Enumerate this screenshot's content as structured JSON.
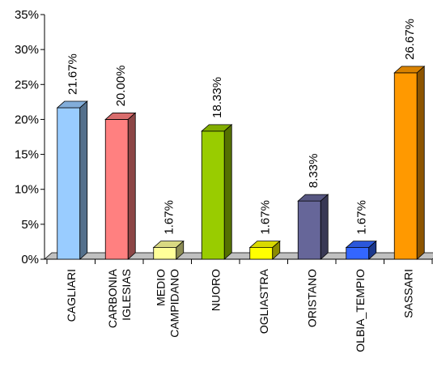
{
  "chart_data": {
    "type": "bar",
    "title": "",
    "xlabel": "",
    "ylabel": "",
    "categories": [
      [
        "CAGLIARI"
      ],
      [
        "CARBONIA",
        "IGLESIAS"
      ],
      [
        "MEDIO",
        "CAMPIDANO"
      ],
      [
        "NUORO"
      ],
      [
        "OGLIASTRA"
      ],
      [
        "ORISTANO"
      ],
      [
        "OLBIA_TEMPIO"
      ],
      [
        "SASSARI"
      ]
    ],
    "values": [
      21.67,
      20.0,
      1.67,
      18.33,
      1.67,
      8.33,
      1.67,
      26.67
    ],
    "value_labels": [
      "21.67%",
      "20.00%",
      "1.67%",
      "18.33%",
      "1.67%",
      "8.33%",
      "1.67%",
      "26.67%"
    ],
    "colors": [
      "#99ccff",
      "#ff8080",
      "#ffff99",
      "#99cc00",
      "#ffff00",
      "#666699",
      "#3366ff",
      "#ff9900"
    ],
    "ylim": [
      0,
      35
    ],
    "yticks": [
      0,
      5,
      10,
      15,
      20,
      25,
      30,
      35
    ],
    "ytick_labels": [
      "0%",
      "5%",
      "10%",
      "15%",
      "20%",
      "25%",
      "30%",
      "35%"
    ],
    "grid": false,
    "legend": "none",
    "style": "3d-bar"
  }
}
